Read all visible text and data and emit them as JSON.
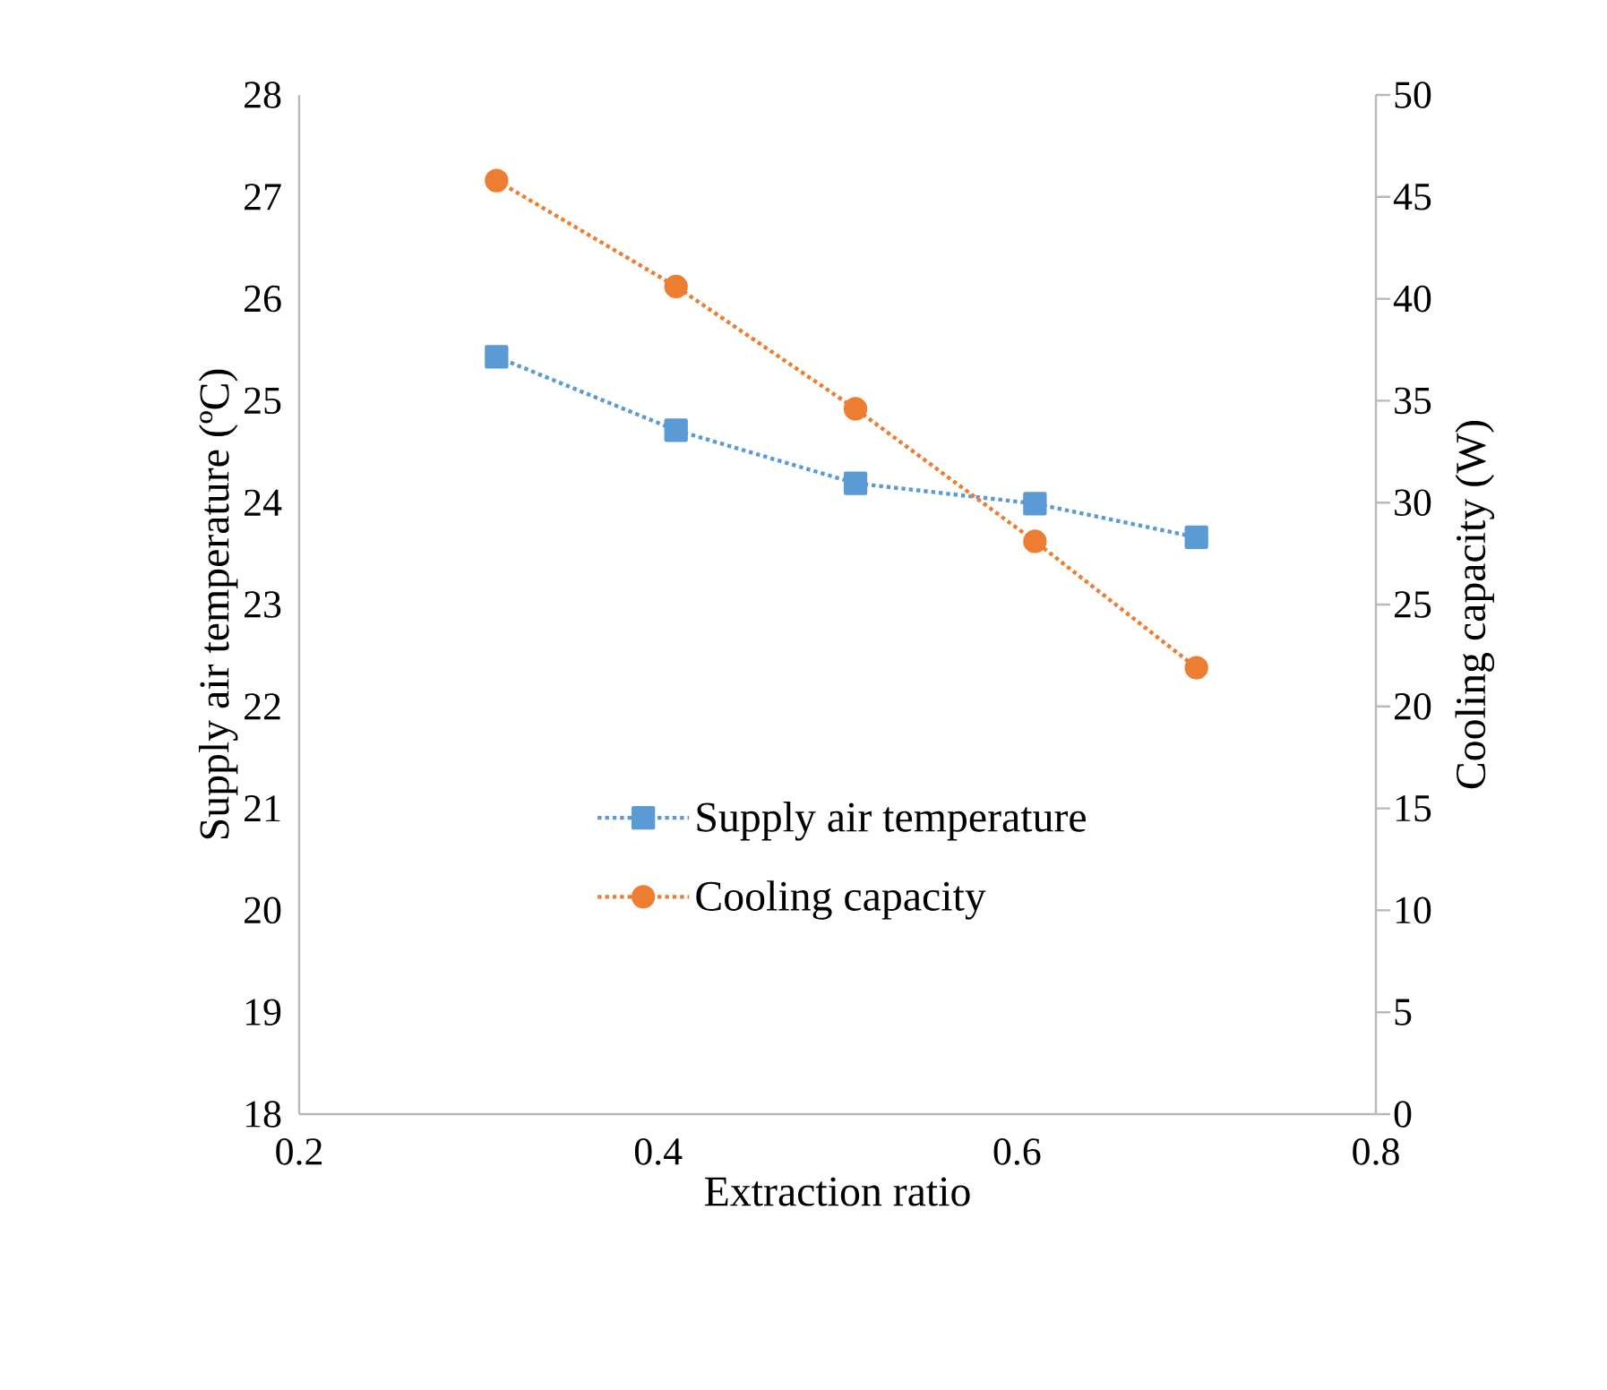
{
  "chart_data": {
    "type": "line",
    "xlabel": "Extraction ratio",
    "ylabel": "Supply air temperature (ºC)",
    "y2label": "Cooling capacity (W)",
    "xlim": [
      0.2,
      0.8
    ],
    "xticks": [
      0.2,
      0.4,
      0.6,
      0.8
    ],
    "ylim": [
      18,
      28
    ],
    "yticks": [
      18,
      19,
      20,
      21,
      22,
      23,
      24,
      25,
      26,
      27,
      28
    ],
    "y2lim": [
      0,
      50
    ],
    "y2ticks": [
      0,
      5,
      10,
      15,
      20,
      25,
      30,
      35,
      40,
      45,
      50
    ],
    "legend": "right",
    "line_style": "dotted",
    "grid": false,
    "series": [
      {
        "name": "Supply air temperature",
        "color": "#5b9bd5",
        "marker": "square",
        "x": [
          0.31,
          0.41,
          0.51,
          0.61,
          0.7
        ],
        "values": [
          25.43,
          24.71,
          24.19,
          23.99,
          23.66
        ]
      },
      {
        "name": "Cooling capacity",
        "color": "#ed7d31",
        "marker": "circle",
        "axis": "y2",
        "x": [
          0.31,
          0.41,
          0.51,
          0.61,
          0.7
        ],
        "values": [
          45.8,
          40.6,
          34.6,
          28.1,
          21.9
        ]
      }
    ]
  }
}
